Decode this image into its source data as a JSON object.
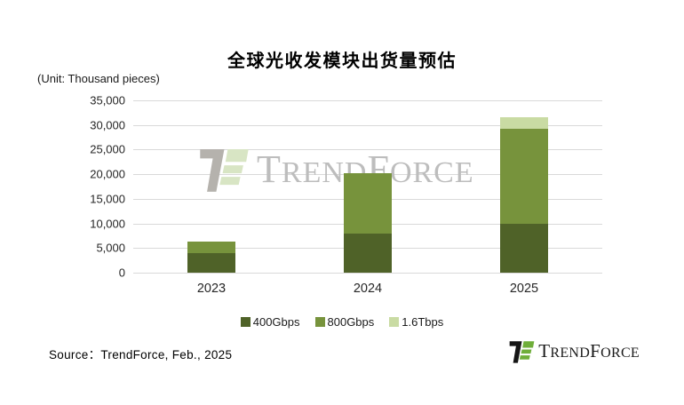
{
  "source_note": "Source：TrendForce, Feb., 2025",
  "brand_wordmark": {
    "cap1": "T",
    "seg1": "REND",
    "cap2": "F",
    "seg2": "ORCE"
  },
  "colors": {
    "dark_green": "#4F6228",
    "medium_green": "#77933C",
    "light_green": "#C9DBA3",
    "gridline": "#D9D9D9",
    "logo_green": "#6FAE3A",
    "logo_black": "#151515",
    "watermark_gray": "#BDBDBD",
    "watermark_pale_green": "#D8E5C4"
  },
  "chart_data": {
    "type": "bar",
    "stacked": true,
    "title": "全球光收发模块出货量预估",
    "unit_label": "(Unit: Thousand pieces)",
    "categories": [
      "2023",
      "2024",
      "2025"
    ],
    "series": [
      {
        "name": "400Gbps",
        "color": "#4F6228",
        "values": [
          4000,
          8000,
          10000
        ]
      },
      {
        "name": "800Gbps",
        "color": "#77933C",
        "values": [
          2300,
          12200,
          19200
        ]
      },
      {
        "name": "1.6Tbps",
        "color": "#C9DBA3",
        "values": [
          0,
          0,
          2400
        ]
      }
    ],
    "ylim": [
      0,
      35000
    ],
    "y_tick_step": 5000,
    "y_tick_labels": [
      "0",
      "5,000",
      "10,000",
      "15,000",
      "20,000",
      "25,000",
      "30,000",
      "35,000"
    ],
    "grid": true,
    "legend_position": "bottom",
    "watermark_text": "TRENDFORCE"
  }
}
